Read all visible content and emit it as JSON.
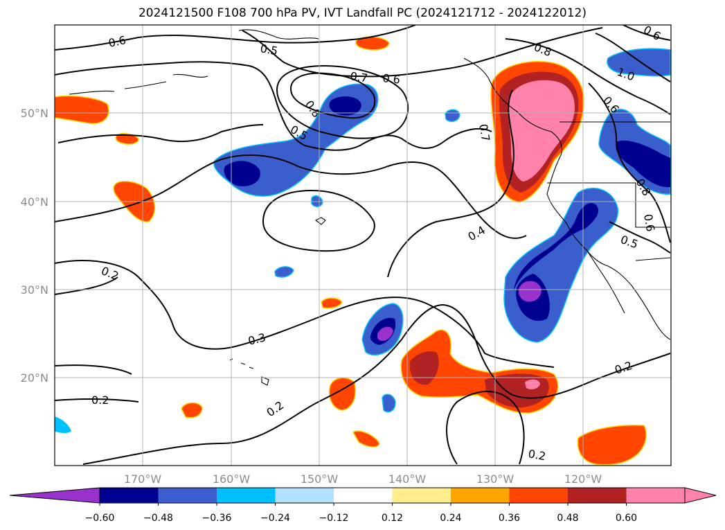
{
  "title": "2024121500 F108 700 hPa PV, IVT Landfall PC (2024121712 - 2024122012)",
  "map": {
    "lon_labels": [
      "170°W",
      "160°W",
      "150°W",
      "140°W",
      "130°W",
      "120°W"
    ],
    "lat_labels": [
      "50°N",
      "40°N",
      "30°N",
      "20°N"
    ],
    "contour_labels": [
      "0.6",
      "0.5",
      "0.7",
      "0.6",
      "0.8",
      "0.8",
      "0.5",
      "0.7",
      "0.4",
      "0.2",
      "0.3",
      "0.2",
      "0.2",
      "0.2",
      "0.2",
      "0.6",
      "1.0",
      "0.6",
      "0.5",
      "0.8",
      "0.6"
    ]
  },
  "colorbar": {
    "ticks": [
      "−0.60",
      "−0.48",
      "−0.36",
      "−0.24",
      "−0.12",
      "0.12",
      "0.24",
      "0.36",
      "0.48",
      "0.60"
    ],
    "colors": [
      "#9932cc",
      "#000090",
      "#3a5fcd",
      "#00bfff",
      "#b0e2ff",
      "#ffffff",
      "#ffec8b",
      "#ffa500",
      "#ff4500",
      "#b22222",
      "#ff82ab",
      "#ff82ab"
    ]
  }
}
